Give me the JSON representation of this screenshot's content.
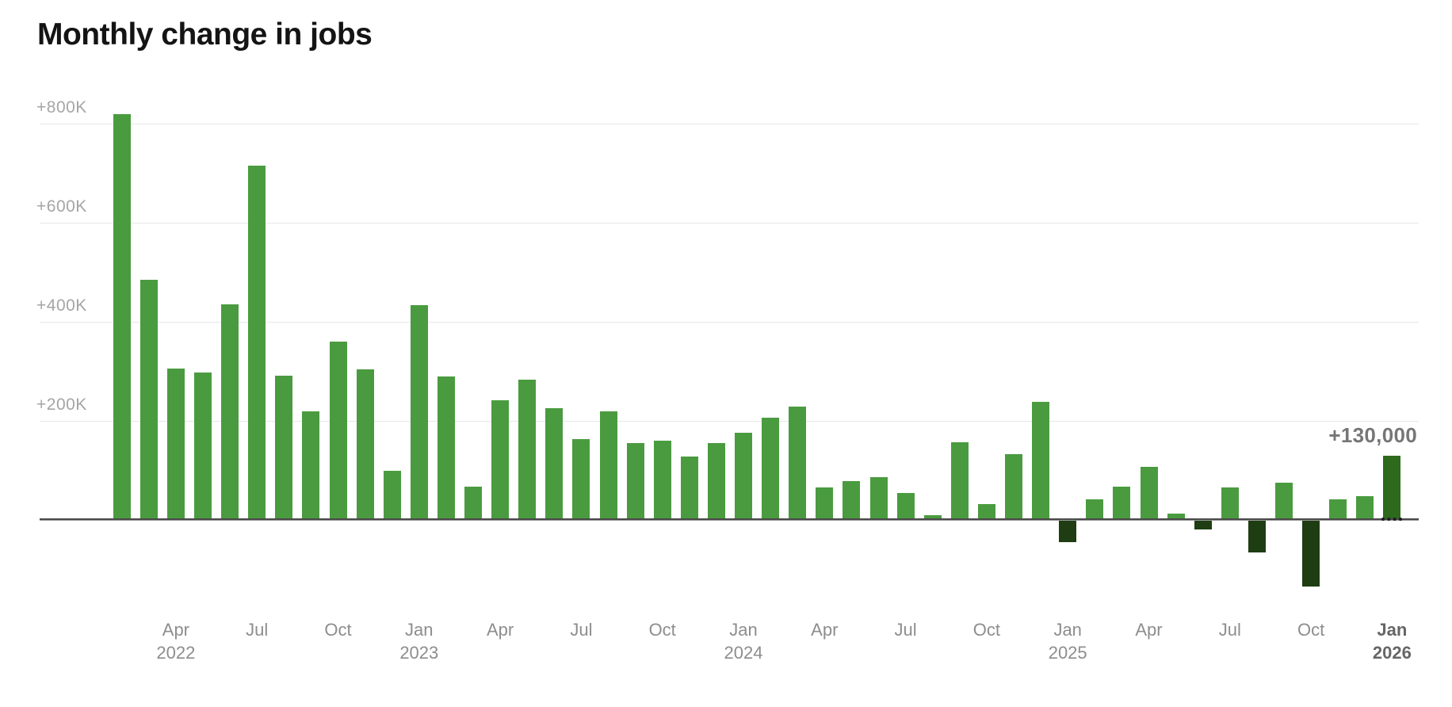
{
  "title": "Monthly change in jobs",
  "annotation": "+130,000",
  "colors": {
    "positive_bar": "#4a9b3f",
    "negative_bar": "#1e3d12",
    "highlight_bar": "#2d6a1c",
    "axis": "#4a4a4a",
    "gridline": "#e7e7e7",
    "y_label": "#a5a5a5",
    "x_label": "#8d8d8d",
    "x_label_bold": "#666666",
    "annotation_text": "#767676",
    "title_text": "#141414"
  },
  "chart_data": {
    "type": "bar",
    "title": "Monthly change in jobs",
    "unit": "jobs, thousands",
    "baseline": 0,
    "gridlines": true,
    "ylim": [
      -200,
      900
    ],
    "x": [
      "Feb 2022",
      "Mar 2022",
      "Apr 2022",
      "May 2022",
      "Jun 2022",
      "Jul 2022",
      "Aug 2022",
      "Sep 2022",
      "Oct 2022",
      "Nov 2022",
      "Dec 2022",
      "Jan 2023",
      "Feb 2023",
      "Mar 2023",
      "Apr 2023",
      "May 2023",
      "Jun 2023",
      "Jul 2023",
      "Aug 2023",
      "Sep 2023",
      "Oct 2023",
      "Nov 2023",
      "Dec 2023",
      "Jan 2024",
      "Feb 2024",
      "Mar 2024",
      "Apr 2024",
      "May 2024",
      "Jun 2024",
      "Jul 2024",
      "Aug 2024",
      "Sep 2024",
      "Oct 2024",
      "Nov 2024",
      "Dec 2024",
      "Jan 2025",
      "Feb 2025",
      "Mar 2025",
      "Apr 2025",
      "May 2025",
      "Jun 2025",
      "Jul 2025",
      "Aug 2025",
      "Sep 2025",
      "Oct 2025",
      "Nov 2025",
      "Dec 2025",
      "Jan 2026"
    ],
    "values": [
      820,
      485,
      305,
      298,
      435,
      715,
      292,
      220,
      360,
      304,
      100,
      434,
      290,
      68,
      242,
      283,
      226,
      164,
      219,
      155,
      160,
      128,
      155,
      176,
      206,
      229,
      66,
      78,
      87,
      54,
      10,
      157,
      32,
      133,
      239,
      -45,
      42,
      68,
      108,
      13,
      -19,
      65,
      -65,
      76,
      -135,
      41,
      48,
      130
    ],
    "highlight_point": {
      "x": "Jan 2026",
      "value": 130,
      "label": "+130,000"
    },
    "y_axis": {
      "ticks": [
        {
          "value": 800,
          "label": "+800K"
        },
        {
          "value": 600,
          "label": "+600K"
        },
        {
          "value": 400,
          "label": "+400K"
        },
        {
          "value": 200,
          "label": "+200K"
        }
      ]
    },
    "x_axis": {
      "ticks": [
        {
          "index": 2,
          "line1": "Apr",
          "line2": "2022",
          "bold": false
        },
        {
          "index": 5,
          "line1": "Jul",
          "line2": "",
          "bold": false
        },
        {
          "index": 8,
          "line1": "Oct",
          "line2": "",
          "bold": false
        },
        {
          "index": 11,
          "line1": "Jan",
          "line2": "2023",
          "bold": false
        },
        {
          "index": 14,
          "line1": "Apr",
          "line2": "",
          "bold": false
        },
        {
          "index": 17,
          "line1": "Jul",
          "line2": "",
          "bold": false
        },
        {
          "index": 20,
          "line1": "Oct",
          "line2": "",
          "bold": false
        },
        {
          "index": 23,
          "line1": "Jan",
          "line2": "2024",
          "bold": false
        },
        {
          "index": 26,
          "line1": "Apr",
          "line2": "",
          "bold": false
        },
        {
          "index": 29,
          "line1": "Jul",
          "line2": "",
          "bold": false
        },
        {
          "index": 32,
          "line1": "Oct",
          "line2": "",
          "bold": false
        },
        {
          "index": 35,
          "line1": "Jan",
          "line2": "2025",
          "bold": false
        },
        {
          "index": 38,
          "line1": "Apr",
          "line2": "",
          "bold": false
        },
        {
          "index": 41,
          "line1": "Jul",
          "line2": "",
          "bold": false
        },
        {
          "index": 44,
          "line1": "Oct",
          "line2": "",
          "bold": false
        },
        {
          "index": 47,
          "line1": "Jan",
          "line2": "2026",
          "bold": true
        }
      ]
    },
    "legend": null
  }
}
